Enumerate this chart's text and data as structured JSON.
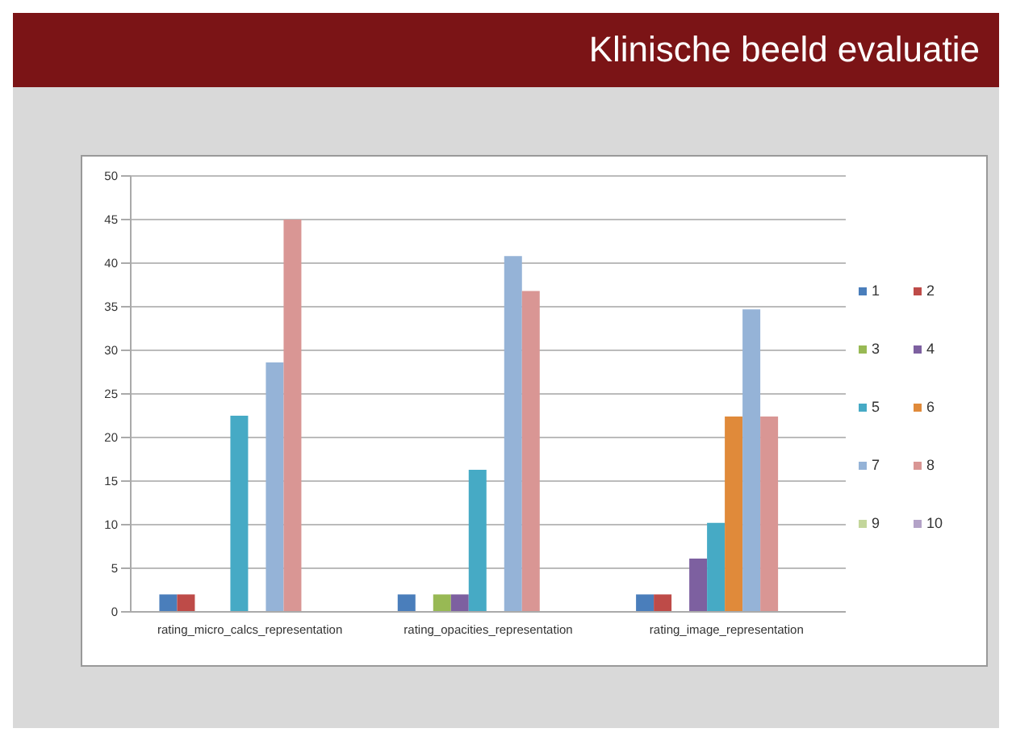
{
  "chart_data": {
    "type": "bar",
    "title": "Klinische beeld evaluatie",
    "categories": [
      "rating_micro_calcs_representation",
      "rating_opacities_representation",
      "rating_image_representation"
    ],
    "series": [
      {
        "name": "1",
        "color": "#4a7ebb",
        "values": [
          2,
          2,
          2
        ]
      },
      {
        "name": "2",
        "color": "#be4b48",
        "values": [
          2,
          null,
          2
        ]
      },
      {
        "name": "3",
        "color": "#98b954",
        "values": [
          null,
          2,
          null
        ]
      },
      {
        "name": "4",
        "color": "#7d60a0",
        "values": [
          null,
          2,
          6.1
        ]
      },
      {
        "name": "5",
        "color": "#46aac5",
        "values": [
          22.5,
          16.3,
          10.2
        ]
      },
      {
        "name": "6",
        "color": "#e08a3a",
        "values": [
          null,
          null,
          22.4
        ]
      },
      {
        "name": "7",
        "color": "#95b3d7",
        "values": [
          28.6,
          40.8,
          34.7
        ]
      },
      {
        "name": "8",
        "color": "#d99694",
        "values": [
          45,
          36.8,
          22.4
        ]
      },
      {
        "name": "9",
        "color": "#c3d69b",
        "values": [
          null,
          null,
          null
        ]
      },
      {
        "name": "10",
        "color": "#b3a2c7",
        "values": [
          null,
          null,
          null
        ]
      }
    ],
    "ylim": [
      0,
      50
    ],
    "yticks": [
      0,
      5,
      10,
      15,
      20,
      25,
      30,
      35,
      40,
      45,
      50
    ],
    "grid": "y",
    "legend": "right"
  }
}
